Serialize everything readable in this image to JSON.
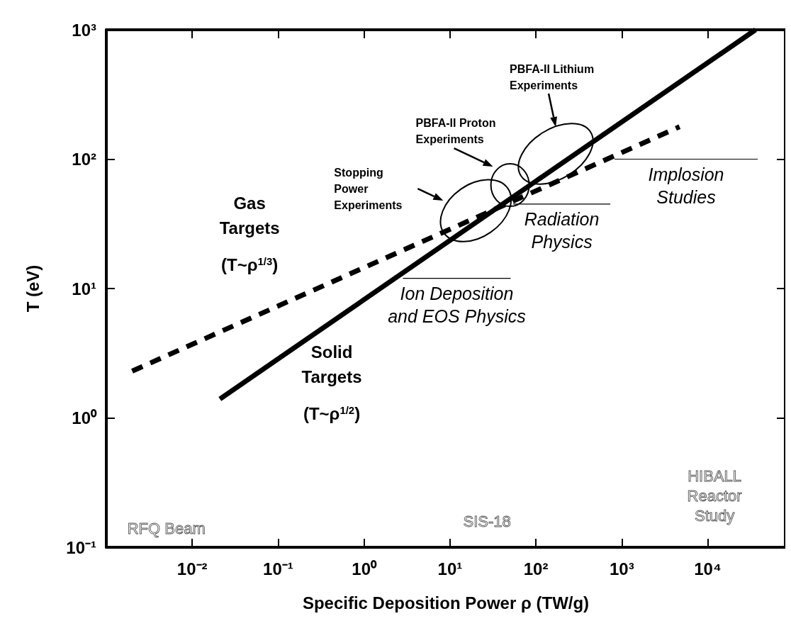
{
  "chart_data": {
    "type": "line",
    "xlabel": "Specific Deposition Power ρ (TW/g)",
    "ylabel": "T (eV)",
    "log": "xy",
    "grid": false,
    "marker": "none",
    "xlim": [
      0.001,
      80000
    ],
    "ylim": [
      0.1,
      1000
    ],
    "xticks": [
      {
        "value": 0.01,
        "label": "10⁻²"
      },
      {
        "value": 0.1,
        "label": "10⁻¹"
      },
      {
        "value": 1,
        "label": "10⁰"
      },
      {
        "value": 10,
        "label": "10¹"
      },
      {
        "value": 100,
        "label": "10²"
      },
      {
        "value": 1000,
        "label": "10³"
      },
      {
        "value": 10000,
        "label": "10⁴"
      }
    ],
    "yticks": [
      {
        "value": 0.1,
        "label": "10⁻¹"
      },
      {
        "value": 1,
        "label": "10⁰"
      },
      {
        "value": 10,
        "label": "10¹"
      },
      {
        "value": 100,
        "label": "10²"
      },
      {
        "value": 1000,
        "label": "10³"
      }
    ],
    "series": [
      {
        "name": "Gas\nTargets\n(T~ρ$^{1/3}$)",
        "color": "#000000",
        "line_style": "dashed",
        "x": [
          0.002,
          4700
        ],
        "values": [
          2.3,
          178
        ]
      },
      {
        "name": "Solid\nTargets\n(T~ρ$^{1/2}$)",
        "color": "#000000",
        "line_style": "solid",
        "x": [
          0.021,
          36000
        ],
        "values": [
          1.4,
          1000
        ]
      }
    ],
    "annotations": [
      "Stopping\nPower\nExperiments",
      "PBFA-II Proton\nExperiments",
      "PBFA-II Lithium\nExperiments",
      "Ion Deposition\nand EOS Physics",
      "Radiation\nPhysics",
      "Implosion\nStudies",
      "RFQ   Beam",
      "SIS-18",
      "HIBALL\nReactor\nStudy"
    ]
  }
}
